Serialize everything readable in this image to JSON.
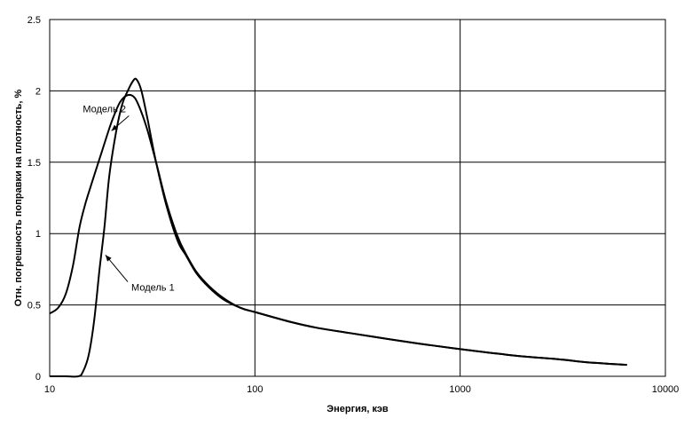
{
  "chart_data": {
    "type": "line",
    "title": "",
    "xlabel": "Энергия, кэв",
    "ylabel": "Отн. погрешность поправки на плотность, %",
    "xscale": "log",
    "xlim": [
      10,
      10000
    ],
    "ylim": [
      0,
      2.5
    ],
    "xticks": [
      10,
      100,
      1000,
      10000
    ],
    "xtick_labels": [
      "10",
      "100",
      "1000",
      "10000"
    ],
    "yticks": [
      0,
      0.5,
      1,
      1.5,
      2,
      2.5
    ],
    "ytick_labels": [
      "0",
      "0.5",
      "1",
      "1.5",
      "2",
      "2.5"
    ],
    "grid": true,
    "legend": "none",
    "series": [
      {
        "name": "Модель 1",
        "x": [
          10,
          12,
          13.8,
          14.5,
          15.5,
          16.5,
          17.5,
          18.5,
          19.5,
          21,
          22.5,
          24,
          25.5,
          26.5,
          28,
          30,
          33,
          37,
          42,
          46,
          52,
          60,
          70,
          85,
          100,
          150,
          200,
          300,
          500,
          700,
          1000,
          1500,
          2000,
          3000,
          4000,
          5000,
          6500
        ],
        "y": [
          0,
          0,
          0,
          0.03,
          0.15,
          0.4,
          0.75,
          1.05,
          1.4,
          1.7,
          1.9,
          2.0,
          2.07,
          2.08,
          2.0,
          1.8,
          1.5,
          1.2,
          0.95,
          0.85,
          0.72,
          0.62,
          0.54,
          0.48,
          0.45,
          0.38,
          0.34,
          0.3,
          0.25,
          0.22,
          0.19,
          0.16,
          0.14,
          0.12,
          0.1,
          0.09,
          0.08
        ]
      },
      {
        "name": "Модель 2",
        "x": [
          10,
          11,
          12,
          13,
          14,
          15,
          16,
          18,
          20,
          22,
          24,
          26,
          28,
          30,
          33,
          37,
          42,
          46,
          52,
          60,
          70,
          85,
          100,
          150,
          200,
          300,
          500,
          700,
          1000,
          1500,
          2000,
          3000,
          4000,
          5000,
          6500
        ],
        "y": [
          0.44,
          0.48,
          0.58,
          0.78,
          1.05,
          1.22,
          1.35,
          1.58,
          1.78,
          1.92,
          1.97,
          1.95,
          1.85,
          1.72,
          1.5,
          1.22,
          0.98,
          0.86,
          0.73,
          0.63,
          0.55,
          0.48,
          0.45,
          0.38,
          0.34,
          0.3,
          0.25,
          0.22,
          0.19,
          0.16,
          0.14,
          0.12,
          0.1,
          0.09,
          0.08
        ]
      }
    ],
    "annotations": [
      {
        "text": "Модель 2",
        "target_series": 1,
        "target_x": 20,
        "target_y": 1.72,
        "label_x": 14.5,
        "label_y": 1.85
      },
      {
        "text": "Модель 1",
        "target_series": 0,
        "target_x": 18.7,
        "target_y": 0.85,
        "label_x": 25,
        "label_y": 0.6
      }
    ]
  }
}
